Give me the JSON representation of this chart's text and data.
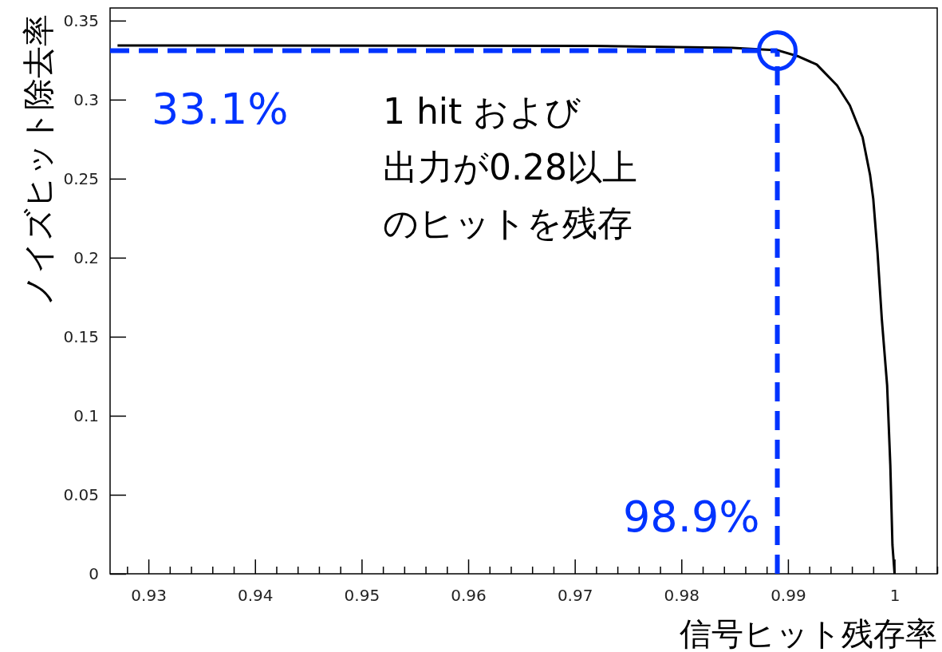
{
  "chart_data": {
    "type": "line",
    "xlabel": "信号ヒット残存率",
    "ylabel": "ノイズヒット除去率",
    "x": [
      0.9271,
      0.9718,
      0.9848,
      0.989,
      0.991,
      0.9927,
      0.9946,
      0.9958,
      0.997,
      0.9977,
      0.998,
      0.9984,
      0.9988,
      0.9993,
      0.9996,
      0.9998,
      1.0
    ],
    "series": [
      {
        "color": "#000000",
        "values": [
          0.3343,
          0.334,
          0.3328,
          0.3313,
          0.3273,
          0.3222,
          0.309,
          0.2964,
          0.2762,
          0.2524,
          0.2372,
          0.2033,
          0.1614,
          0.1194,
          0.0688,
          0.0182,
          0
        ]
      }
    ],
    "xlim": [
      0.9264,
      1.004
    ],
    "ylim": [
      0,
      0.358
    ],
    "xticks": [
      {
        "value": 0.928,
        "label": null
      },
      0.93,
      {
        "value": 0.932,
        "label": null
      },
      {
        "value": 0.934,
        "label": null
      },
      {
        "value": 0.936,
        "label": null
      },
      {
        "value": 0.938,
        "label": null
      },
      0.94,
      {
        "value": 0.942,
        "label": null
      },
      {
        "value": 0.944,
        "label": null
      },
      {
        "value": 0.946,
        "label": null
      },
      {
        "value": 0.948,
        "label": null
      },
      0.95,
      {
        "value": 0.952,
        "label": null
      },
      {
        "value": 0.954,
        "label": null
      },
      {
        "value": 0.956,
        "label": null
      },
      {
        "value": 0.958,
        "label": null
      },
      0.96,
      {
        "value": 0.962,
        "label": null
      },
      {
        "value": 0.964,
        "label": null
      },
      {
        "value": 0.966,
        "label": null
      },
      {
        "value": 0.968,
        "label": null
      },
      0.97,
      {
        "value": 0.972,
        "label": null
      },
      {
        "value": 0.974,
        "label": null
      },
      {
        "value": 0.976,
        "label": null
      },
      {
        "value": 0.978,
        "label": null
      },
      0.98,
      {
        "value": 0.982,
        "label": null
      },
      {
        "value": 0.984,
        "label": null
      },
      {
        "value": 0.986,
        "label": null
      },
      {
        "value": 0.988,
        "label": null
      },
      0.99,
      {
        "value": 0.992,
        "label": null
      },
      {
        "value": 0.994,
        "label": null
      },
      {
        "value": 0.996,
        "label": null
      },
      {
        "value": 0.998,
        "label": null
      },
      1,
      {
        "value": 1.002,
        "label": null
      },
      {
        "value": 1.004,
        "label": null
      }
    ],
    "yticks": [
      0,
      0.05,
      0.1,
      0.15,
      0.2,
      0.25,
      0.3,
      0.35
    ],
    "ref_lines": [
      {
        "axis": "y",
        "value": 0.331,
        "label": "33.1%",
        "color": "#0033ff",
        "line_style": "dashed"
      },
      {
        "axis": "x",
        "value": 0.989,
        "label": "98.9%",
        "color": "#0033ff",
        "line_style": "dashed"
      }
    ],
    "annotations": [
      "1 hit および",
      "出力が0.28以上",
      "のヒットを残存"
    ]
  }
}
